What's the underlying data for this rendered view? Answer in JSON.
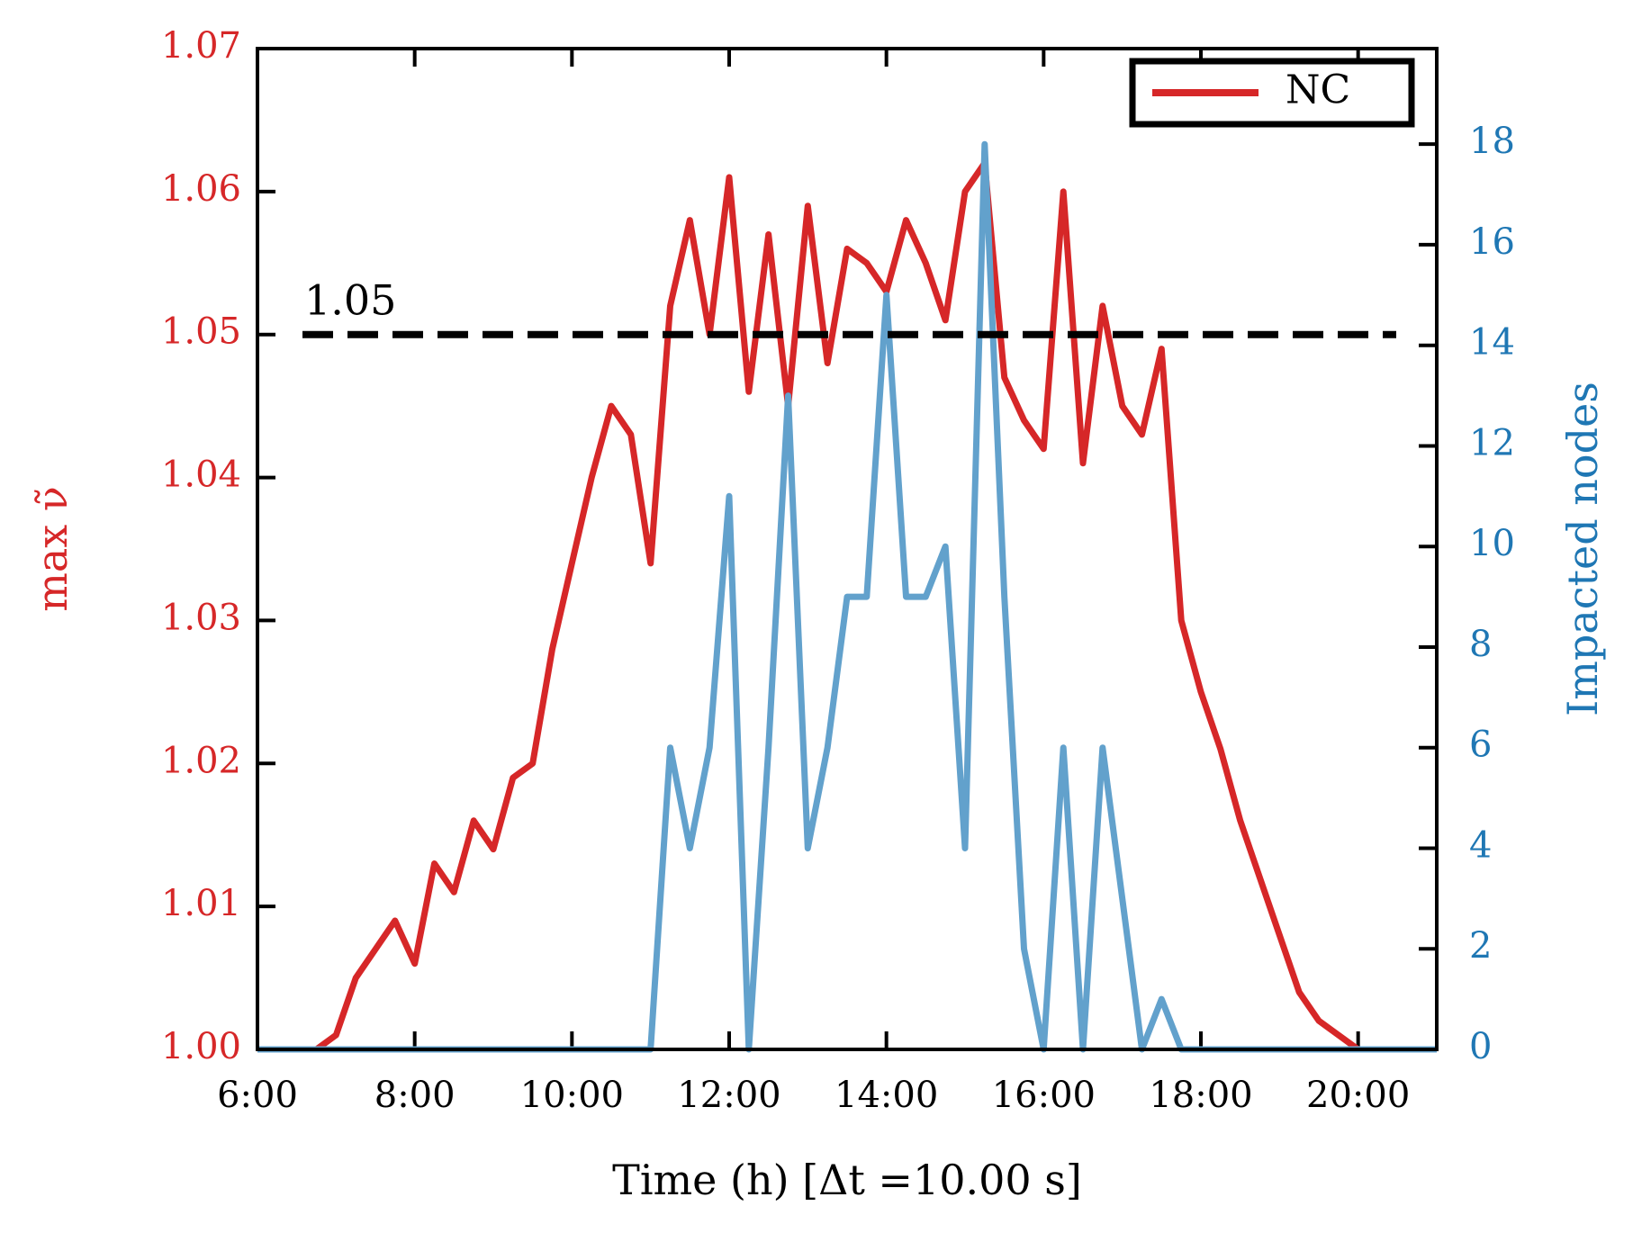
{
  "chart_data": {
    "type": "line",
    "legend": "upper right",
    "xlabel": "Time (h) [Δt =10.00 s]",
    "ylabel": "max ν̃",
    "y2label": "Impacted nodes",
    "x": [
      6.0,
      6.25,
      6.5,
      6.75,
      7.0,
      7.25,
      7.5,
      7.75,
      8.0,
      8.25,
      8.5,
      8.75,
      9.0,
      9.25,
      9.5,
      9.75,
      10.0,
      10.25,
      10.5,
      10.75,
      11.0,
      11.25,
      11.5,
      11.75,
      12.0,
      12.25,
      12.5,
      12.75,
      13.0,
      13.25,
      13.5,
      13.75,
      14.0,
      14.25,
      14.5,
      14.75,
      15.0,
      15.25,
      15.5,
      15.75,
      16.0,
      16.25,
      16.5,
      16.75,
      17.0,
      17.25,
      17.5,
      17.75,
      18.0,
      18.25,
      18.5,
      18.75,
      19.0,
      19.25,
      19.5,
      19.75,
      20.0,
      20.25,
      20.5,
      20.75,
      21.0
    ],
    "series": [
      {
        "name": "NC",
        "color": "#d62728",
        "axis": "y",
        "values": [
          1.0,
          1.0,
          1.0,
          1.0,
          1.001,
          1.005,
          1.007,
          1.009,
          1.006,
          1.013,
          1.011,
          1.016,
          1.014,
          1.019,
          1.02,
          1.028,
          1.034,
          1.04,
          1.045,
          1.043,
          1.034,
          1.052,
          1.058,
          1.05,
          1.061,
          1.046,
          1.057,
          1.045,
          1.059,
          1.048,
          1.056,
          1.055,
          1.053,
          1.058,
          1.055,
          1.051,
          1.06,
          1.062,
          1.047,
          1.044,
          1.042,
          1.06,
          1.041,
          1.052,
          1.045,
          1.043,
          1.049,
          1.03,
          1.025,
          1.021,
          1.016,
          1.012,
          1.008,
          1.004,
          1.002,
          1.001,
          1.0,
          1.0,
          1.0,
          null,
          null
        ]
      },
      {
        "color": "#62a1cc",
        "axis": "y2",
        "values": [
          0,
          0,
          0,
          0,
          0,
          0,
          0,
          0,
          0,
          0,
          0,
          0,
          0,
          0,
          0,
          0,
          0,
          0,
          0,
          0,
          0,
          6,
          4,
          6,
          11,
          0,
          6,
          13,
          4,
          6,
          9,
          9,
          15,
          9,
          9,
          10,
          4,
          18,
          9,
          2,
          0,
          6,
          0,
          6,
          3,
          0,
          1,
          0,
          0,
          0,
          0,
          0,
          0,
          0,
          0,
          0,
          0,
          0,
          0,
          0,
          0
        ]
      }
    ],
    "xlim": [
      6,
      21
    ],
    "xticks": [
      {
        "value": 6,
        "label": "6:00"
      },
      {
        "value": 8,
        "label": "8:00"
      },
      {
        "value": 10,
        "label": "10:00"
      },
      {
        "value": 12,
        "label": "12:00"
      },
      {
        "value": 14,
        "label": "14:00"
      },
      {
        "value": 16,
        "label": "16:00"
      },
      {
        "value": 18,
        "label": "18:00"
      },
      {
        "value": 20,
        "label": "20:00"
      }
    ],
    "ylim": [
      1.0,
      1.07
    ],
    "yticks": [
      {
        "value": 1,
        "label": "1.00"
      },
      1.01,
      1.02,
      1.03,
      1.04,
      1.05,
      1.06,
      1.07
    ],
    "y2lim": [
      0,
      19.9
    ],
    "y2ticks": [
      0,
      2,
      4,
      6,
      8,
      10,
      12,
      14,
      16,
      18
    ],
    "hline": {
      "value": 1.05,
      "label": "1.05"
    }
  }
}
